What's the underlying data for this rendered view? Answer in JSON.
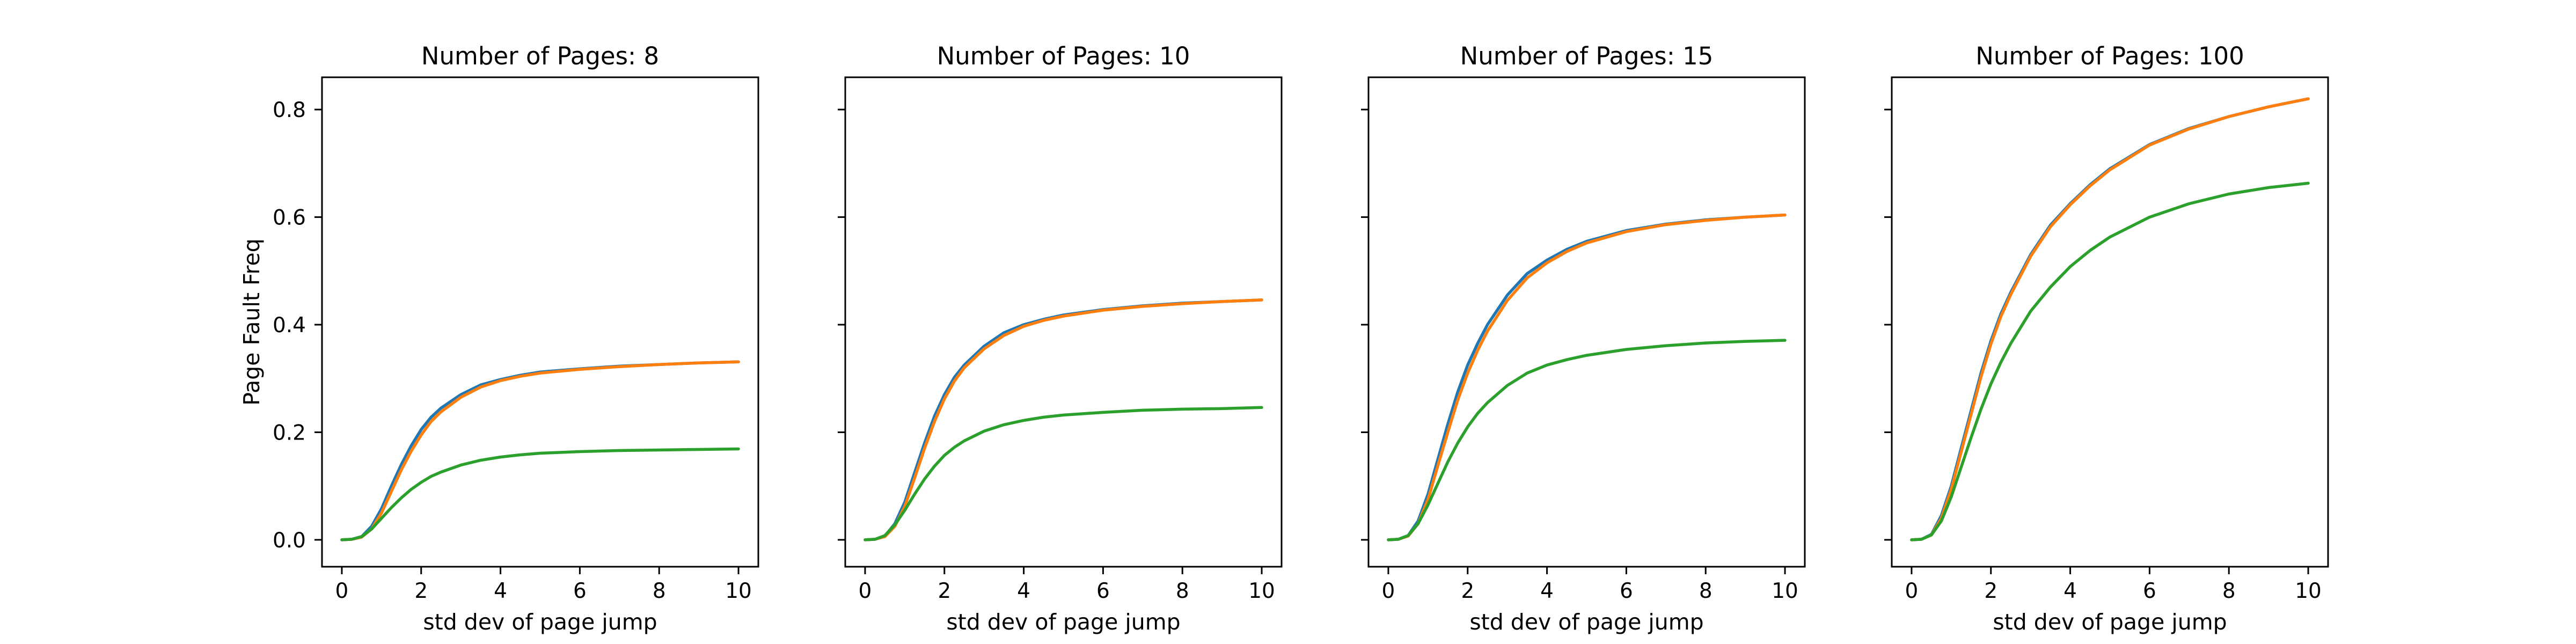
{
  "chart_data": [
    {
      "type": "line",
      "title": "Number of Pages: 8",
      "xlabel": "std dev of page jump",
      "ylabel": "Page Fault Freq",
      "xlim": [
        -0.5,
        10.5
      ],
      "ylim": [
        -0.05,
        0.86
      ],
      "xticks": [
        0,
        2,
        4,
        6,
        8,
        10
      ],
      "yticks": [
        0.0,
        0.2,
        0.4,
        0.6,
        0.8
      ],
      "show_y_tick_labels": true,
      "grid": false,
      "x": [
        0,
        0.25,
        0.5,
        0.75,
        1,
        1.25,
        1.5,
        1.75,
        2,
        2.25,
        2.5,
        3,
        3.5,
        4,
        4.5,
        5,
        6,
        7,
        8,
        9,
        10
      ],
      "series": [
        {
          "color": "#1f77b4",
          "values": [
            0,
            0.001,
            0.006,
            0.025,
            0.058,
            0.1,
            0.14,
            0.175,
            0.205,
            0.228,
            0.245,
            0.27,
            0.288,
            0.298,
            0.306,
            0.312,
            0.318,
            0.323,
            0.326,
            0.329,
            0.331
          ]
        },
        {
          "color": "#ff7f0e",
          "values": [
            0,
            0.001,
            0.005,
            0.02,
            0.05,
            0.09,
            0.13,
            0.165,
            0.195,
            0.22,
            0.238,
            0.265,
            0.284,
            0.296,
            0.304,
            0.31,
            0.317,
            0.322,
            0.326,
            0.329,
            0.331
          ]
        },
        {
          "color": "#2ca02c",
          "values": [
            0,
            0.001,
            0.006,
            0.02,
            0.04,
            0.06,
            0.078,
            0.094,
            0.107,
            0.118,
            0.126,
            0.139,
            0.148,
            0.154,
            0.158,
            0.161,
            0.164,
            0.166,
            0.167,
            0.168,
            0.169
          ]
        }
      ]
    },
    {
      "type": "line",
      "title": "Number of Pages: 10",
      "xlabel": "std dev of page jump",
      "ylabel": "",
      "xlim": [
        -0.5,
        10.5
      ],
      "ylim": [
        -0.05,
        0.86
      ],
      "xticks": [
        0,
        2,
        4,
        6,
        8,
        10
      ],
      "yticks": [
        0.0,
        0.2,
        0.4,
        0.6,
        0.8
      ],
      "show_y_tick_labels": false,
      "grid": false,
      "x": [
        0,
        0.25,
        0.5,
        0.75,
        1,
        1.25,
        1.5,
        1.75,
        2,
        2.25,
        2.5,
        3,
        3.5,
        4,
        4.5,
        5,
        6,
        7,
        8,
        9,
        10
      ],
      "series": [
        {
          "color": "#1f77b4",
          "values": [
            0,
            0.001,
            0.007,
            0.03,
            0.07,
            0.125,
            0.18,
            0.23,
            0.27,
            0.302,
            0.325,
            0.36,
            0.385,
            0.4,
            0.41,
            0.418,
            0.428,
            0.435,
            0.44,
            0.443,
            0.446
          ]
        },
        {
          "color": "#ff7f0e",
          "values": [
            0,
            0.001,
            0.006,
            0.025,
            0.062,
            0.115,
            0.17,
            0.22,
            0.262,
            0.295,
            0.32,
            0.355,
            0.38,
            0.397,
            0.408,
            0.416,
            0.427,
            0.434,
            0.439,
            0.443,
            0.446
          ]
        },
        {
          "color": "#2ca02c",
          "values": [
            0,
            0.001,
            0.008,
            0.028,
            0.055,
            0.085,
            0.113,
            0.137,
            0.157,
            0.172,
            0.184,
            0.202,
            0.214,
            0.222,
            0.228,
            0.232,
            0.237,
            0.241,
            0.243,
            0.244,
            0.246
          ]
        }
      ]
    },
    {
      "type": "line",
      "title": "Number of Pages: 15",
      "xlabel": "std dev of page jump",
      "ylabel": "",
      "xlim": [
        -0.5,
        10.5
      ],
      "ylim": [
        -0.05,
        0.86
      ],
      "xticks": [
        0,
        2,
        4,
        6,
        8,
        10
      ],
      "yticks": [
        0.0,
        0.2,
        0.4,
        0.6,
        0.8
      ],
      "show_y_tick_labels": false,
      "grid": false,
      "x": [
        0,
        0.25,
        0.5,
        0.75,
        1,
        1.25,
        1.5,
        1.75,
        2,
        2.25,
        2.5,
        3,
        3.5,
        4,
        4.5,
        5,
        6,
        7,
        8,
        9,
        10
      ],
      "series": [
        {
          "color": "#1f77b4",
          "values": [
            0,
            0.001,
            0.008,
            0.035,
            0.085,
            0.15,
            0.215,
            0.275,
            0.325,
            0.365,
            0.4,
            0.455,
            0.495,
            0.52,
            0.54,
            0.555,
            0.575,
            0.587,
            0.595,
            0.6,
            0.604
          ]
        },
        {
          "color": "#ff7f0e",
          "values": [
            0,
            0.001,
            0.007,
            0.03,
            0.075,
            0.138,
            0.2,
            0.26,
            0.31,
            0.352,
            0.388,
            0.445,
            0.487,
            0.515,
            0.536,
            0.552,
            0.573,
            0.586,
            0.594,
            0.6,
            0.604
          ]
        },
        {
          "color": "#2ca02c",
          "values": [
            0,
            0.001,
            0.008,
            0.03,
            0.065,
            0.105,
            0.145,
            0.18,
            0.21,
            0.235,
            0.255,
            0.287,
            0.31,
            0.325,
            0.335,
            0.343,
            0.354,
            0.361,
            0.366,
            0.369,
            0.371
          ]
        }
      ]
    },
    {
      "type": "line",
      "title": "Number of Pages: 100",
      "xlabel": "std dev of page jump",
      "ylabel": "",
      "xlim": [
        -0.5,
        10.5
      ],
      "ylim": [
        -0.05,
        0.86
      ],
      "xticks": [
        0,
        2,
        4,
        6,
        8,
        10
      ],
      "yticks": [
        0.0,
        0.2,
        0.4,
        0.6,
        0.8
      ],
      "show_y_tick_labels": false,
      "grid": false,
      "x": [
        0,
        0.25,
        0.5,
        0.75,
        1,
        1.25,
        1.5,
        1.75,
        2,
        2.25,
        2.5,
        3,
        3.5,
        4,
        4.5,
        5,
        6,
        7,
        8,
        9,
        10
      ],
      "series": [
        {
          "color": "#1f77b4",
          "values": [
            0,
            0.001,
            0.01,
            0.045,
            0.1,
            0.17,
            0.24,
            0.31,
            0.37,
            0.42,
            0.46,
            0.53,
            0.585,
            0.625,
            0.66,
            0.69,
            0.735,
            0.765,
            0.787,
            0.805,
            0.82
          ]
        },
        {
          "color": "#ff7f0e",
          "values": [
            0,
            0.001,
            0.009,
            0.04,
            0.094,
            0.163,
            0.233,
            0.303,
            0.364,
            0.415,
            0.456,
            0.527,
            0.582,
            0.623,
            0.658,
            0.688,
            0.734,
            0.764,
            0.787,
            0.805,
            0.82
          ]
        },
        {
          "color": "#2ca02c",
          "values": [
            0,
            0.001,
            0.009,
            0.035,
            0.08,
            0.135,
            0.19,
            0.243,
            0.29,
            0.33,
            0.365,
            0.425,
            0.47,
            0.508,
            0.538,
            0.563,
            0.6,
            0.625,
            0.643,
            0.655,
            0.663
          ]
        }
      ]
    }
  ]
}
